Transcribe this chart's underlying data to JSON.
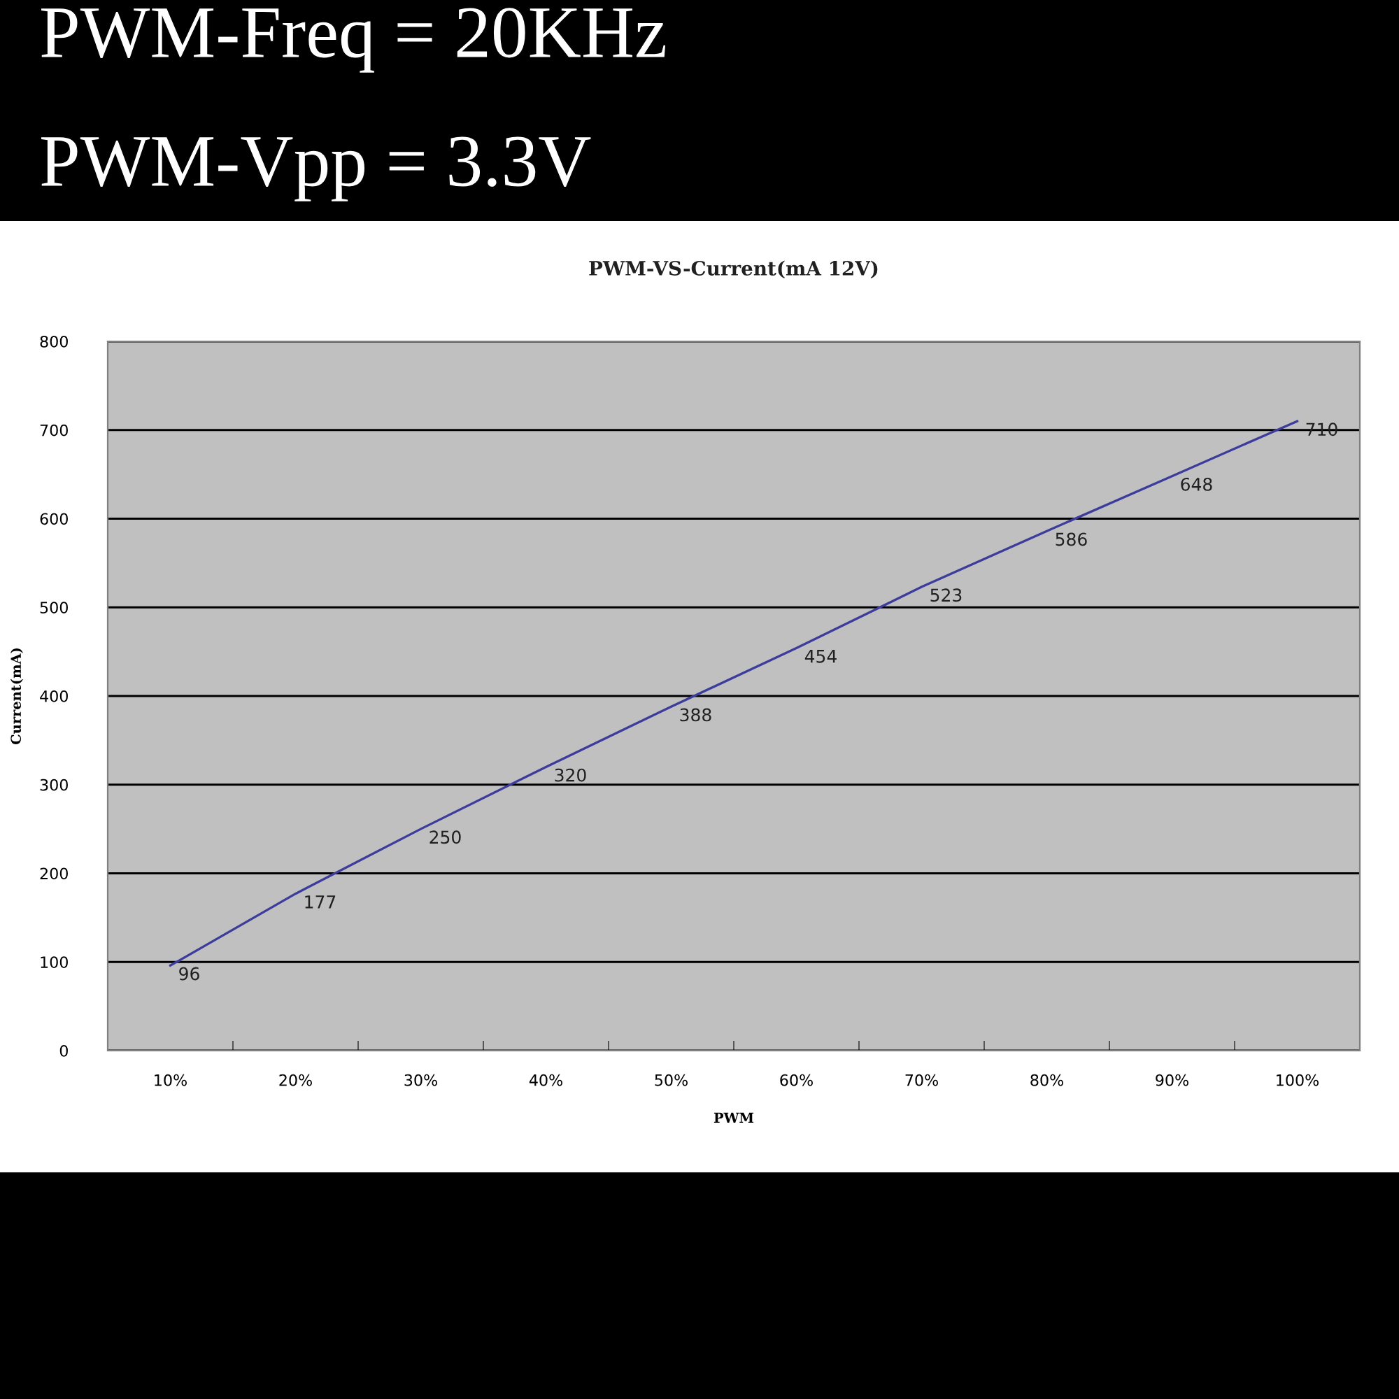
{
  "chart_data": {
    "type": "line",
    "title": "PWM-VS-Current(mA 12V)",
    "xlabel": "PWM",
    "ylabel": "Current(mA)",
    "annotations": [
      "PWM-Freq = 20KHz",
      "PWM-Vpp = 3.3V"
    ],
    "categories": [
      "10%",
      "20%",
      "30%",
      "40%",
      "50%",
      "60%",
      "70%",
      "80%",
      "90%",
      "100%"
    ],
    "series": [
      {
        "color": "#3c3c9c",
        "values": [
          96,
          177,
          250,
          320,
          388,
          454,
          523,
          586,
          648,
          710
        ]
      }
    ],
    "ylim": [
      0,
      800
    ],
    "yticks": [
      0,
      100,
      200,
      300,
      400,
      500,
      600,
      700,
      800
    ],
    "grid": "y",
    "marker": "none",
    "line_style": "solid",
    "data_labels": true
  }
}
